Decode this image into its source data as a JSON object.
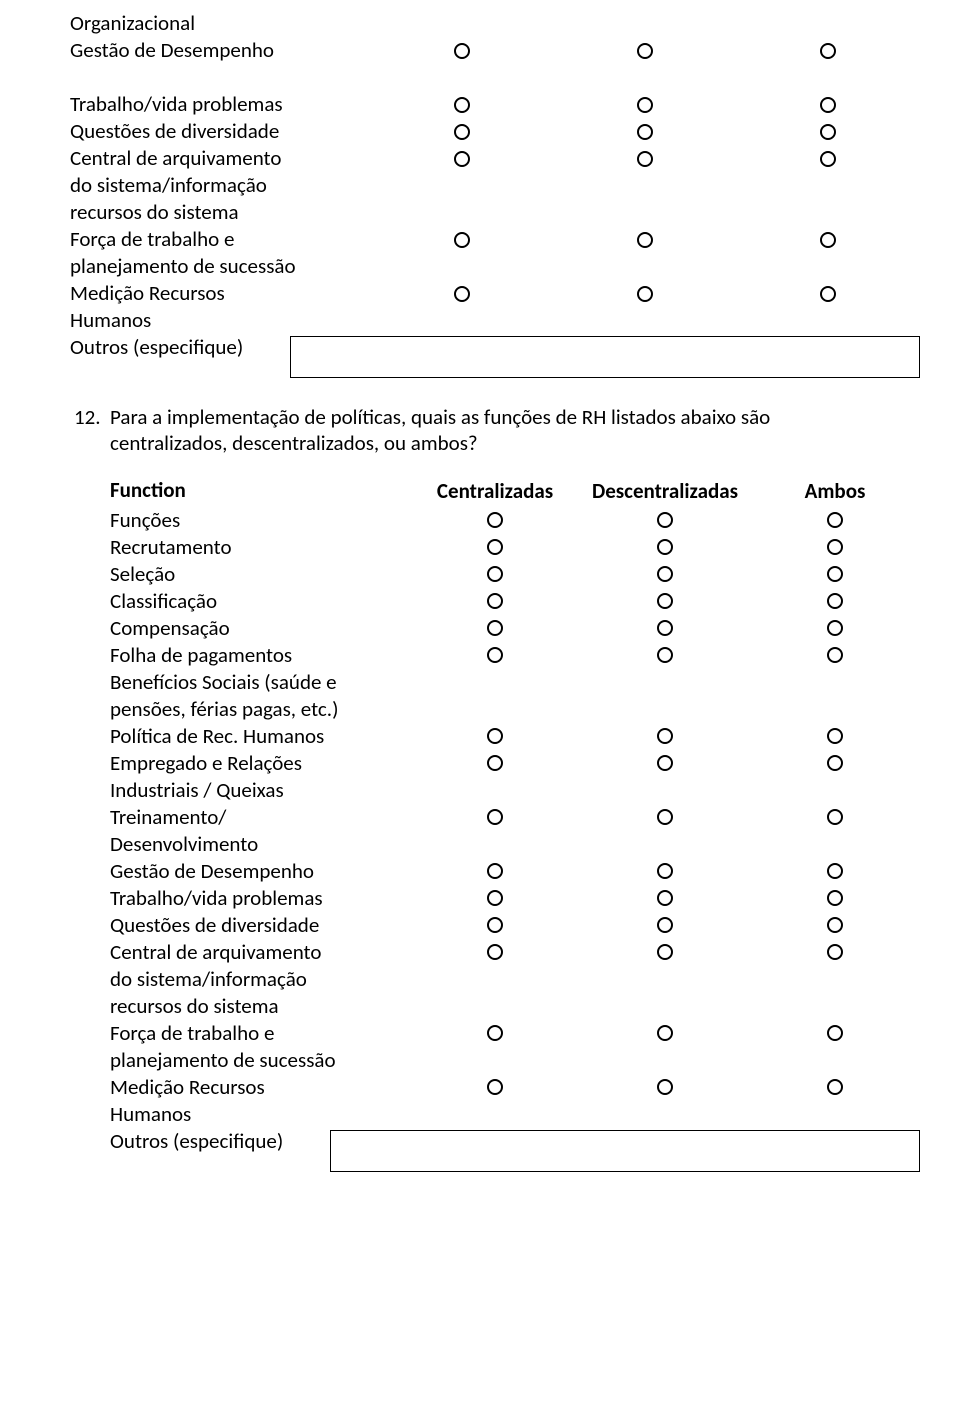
{
  "table1": {
    "rows": [
      {
        "label": "Organizacional",
        "radios": [
          null,
          null,
          null
        ]
      },
      {
        "label": "Gestão de Desempenho",
        "radios": [
          true,
          true,
          true
        ]
      },
      {
        "label": "",
        "radios": [
          null,
          null,
          null
        ]
      },
      {
        "label": "Trabalho/vida problemas",
        "radios": [
          true,
          true,
          true
        ]
      },
      {
        "label": "Questões de diversidade",
        "radios": [
          true,
          true,
          true
        ]
      },
      {
        "label": "Central de arquivamento",
        "radios": [
          true,
          true,
          true
        ]
      },
      {
        "label": "do sistema/informação",
        "radios": [
          null,
          null,
          null
        ]
      },
      {
        "label": "recursos do sistema",
        "radios": [
          null,
          null,
          null
        ]
      },
      {
        "label": "Força de trabalho e",
        "radios": [
          true,
          true,
          true
        ]
      },
      {
        "label": "planejamento de sucessão",
        "radios": [
          null,
          null,
          null
        ]
      },
      {
        "label": "Medição Recursos",
        "radios": [
          true,
          true,
          true
        ]
      },
      {
        "label": "Humanos",
        "radios": [
          null,
          null,
          null
        ]
      }
    ],
    "other_label": "Outros (especifique)"
  },
  "question12": {
    "number": "12.",
    "text": "Para a implementação de políticas, quais as funções de RH listados abaixo são centralizados, descentralizados, ou ambos?"
  },
  "table2": {
    "headers": [
      "Function",
      "Centralizadas",
      "Descentralizadas",
      "Ambos"
    ],
    "rows": [
      {
        "label": "Funções",
        "radios": [
          true,
          true,
          true
        ]
      },
      {
        "label": "Recrutamento",
        "radios": [
          true,
          true,
          true
        ]
      },
      {
        "label": "Seleção",
        "radios": [
          true,
          true,
          true
        ]
      },
      {
        "label": "Classificação",
        "radios": [
          true,
          true,
          true
        ]
      },
      {
        "label": "Compensação",
        "radios": [
          true,
          true,
          true
        ]
      },
      {
        "label": "Folha de pagamentos",
        "radios": [
          true,
          true,
          true
        ]
      },
      {
        "label": "Benefícios Sociais (saúde e",
        "radios": [
          null,
          null,
          null
        ]
      },
      {
        "label": "pensões, férias pagas, etc.)",
        "radios": [
          null,
          null,
          null
        ]
      },
      {
        "label": "Política de Rec. Humanos",
        "radios": [
          true,
          true,
          true
        ]
      },
      {
        "label": "Empregado e Relações",
        "radios": [
          true,
          true,
          true
        ]
      },
      {
        "label": "Industriais / Queixas",
        "radios": [
          null,
          null,
          null
        ]
      },
      {
        "label": "Treinamento/",
        "radios": [
          true,
          true,
          true
        ]
      },
      {
        "label": "Desenvolvimento",
        "radios": [
          null,
          null,
          null
        ]
      },
      {
        "label": "Gestão de Desempenho",
        "radios": [
          true,
          true,
          true
        ]
      },
      {
        "label": "Trabalho/vida problemas",
        "radios": [
          true,
          true,
          true
        ]
      },
      {
        "label": "Questões de diversidade",
        "radios": [
          true,
          true,
          true
        ]
      },
      {
        "label": "Central de arquivamento",
        "radios": [
          true,
          true,
          true
        ]
      },
      {
        "label": "do sistema/informação",
        "radios": [
          null,
          null,
          null
        ]
      },
      {
        "label": "recursos do sistema",
        "radios": [
          null,
          null,
          null
        ]
      },
      {
        "label": "Força de trabalho e",
        "radios": [
          true,
          true,
          true
        ]
      },
      {
        "label": "planejamento de sucessão",
        "radios": [
          null,
          null,
          null
        ]
      },
      {
        "label": "Medição Recursos",
        "radios": [
          true,
          true,
          true
        ]
      },
      {
        "label": "Humanos",
        "radios": [
          null,
          null,
          null
        ]
      }
    ],
    "other_label": "Outros (especifique)"
  }
}
